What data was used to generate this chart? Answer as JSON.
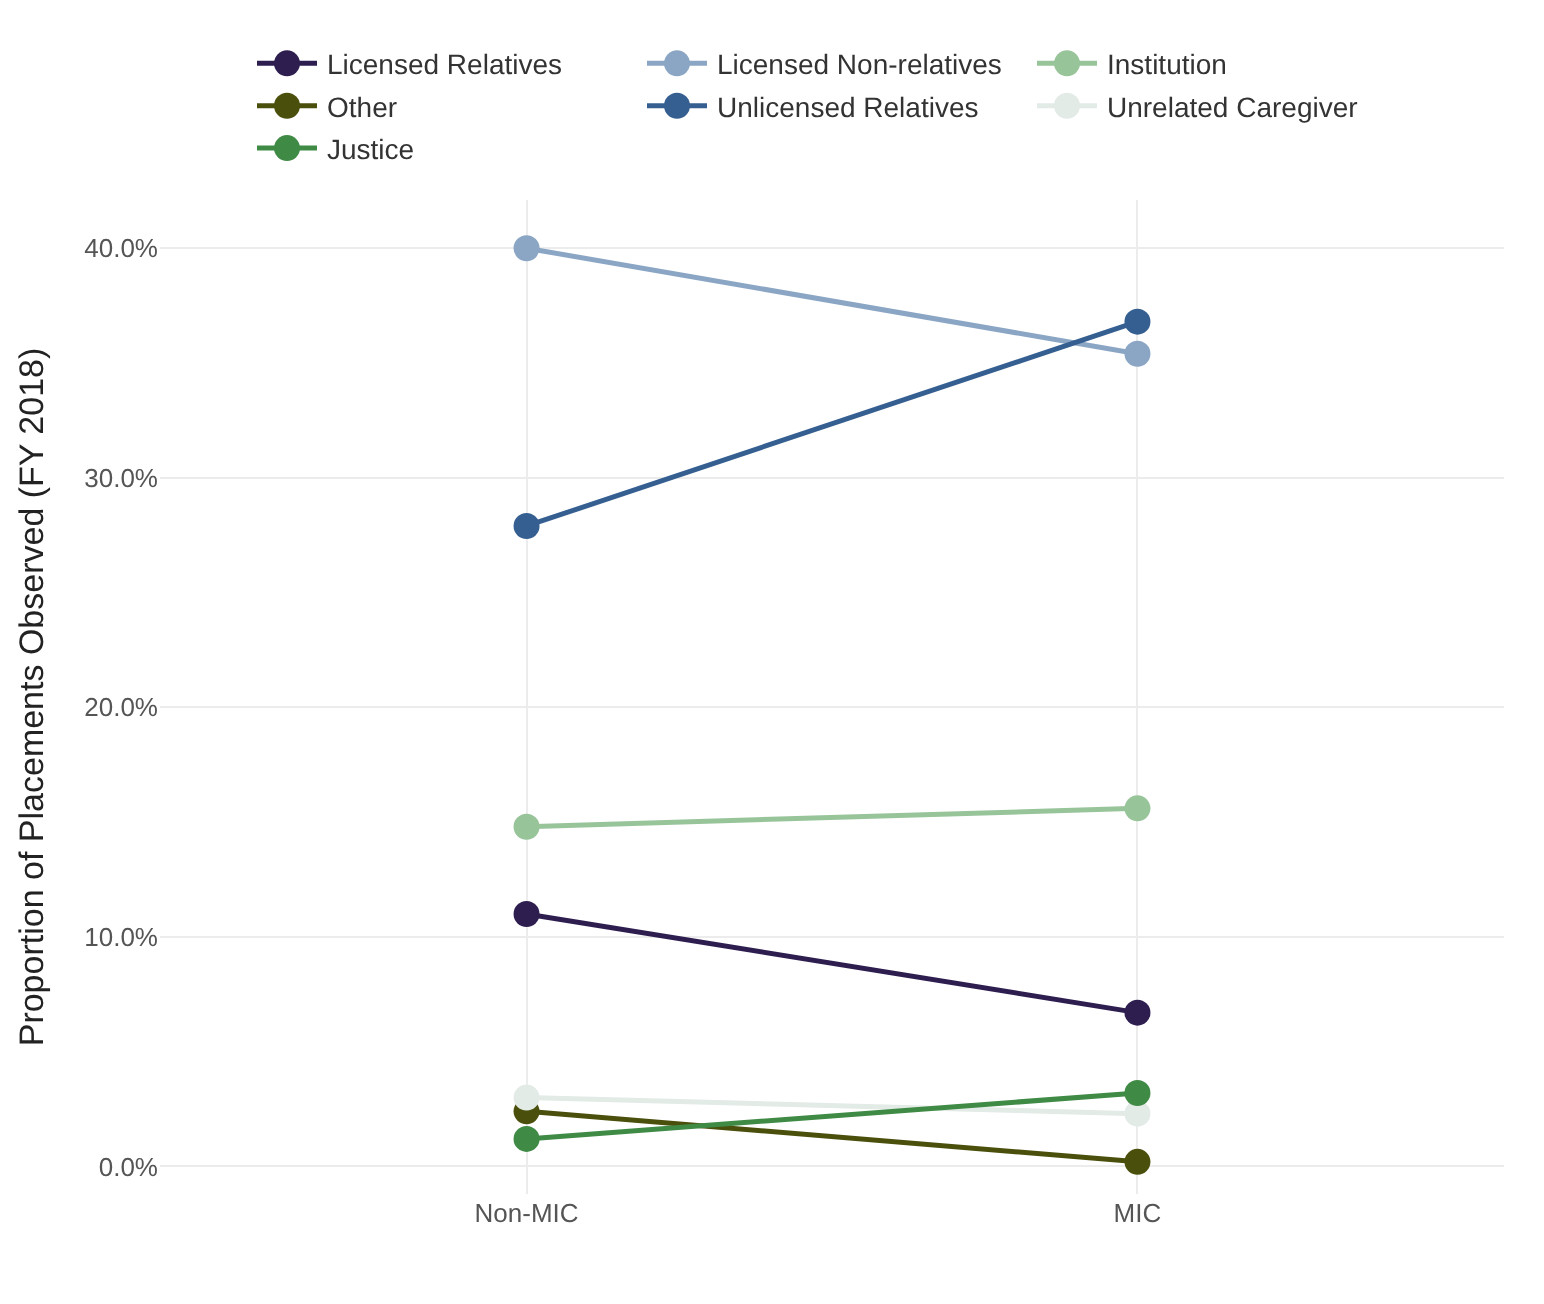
{
  "chart_data": {
    "type": "line",
    "ylabel": "Proportion of Placements Observed (FY 2018)",
    "categories": [
      "Non-MIC",
      "MIC"
    ],
    "series": [
      {
        "name": "Licensed Relatives",
        "color": "#2d1e4f",
        "values": [
          11.0,
          6.7
        ]
      },
      {
        "name": "Licensed Non-relatives",
        "color": "#8aa6c4",
        "values": [
          40.0,
          35.4
        ]
      },
      {
        "name": "Institution",
        "color": "#98c49a",
        "values": [
          14.8,
          15.6
        ]
      },
      {
        "name": "Other",
        "color": "#4a4f0c",
        "values": [
          2.4,
          0.2
        ]
      },
      {
        "name": "Unlicensed Relatives",
        "color": "#365f91",
        "values": [
          27.9,
          36.8
        ]
      },
      {
        "name": "Unrelated Caregiver",
        "color": "#e3ebe6",
        "values": [
          3.0,
          2.3
        ]
      },
      {
        "name": "Justice",
        "color": "#3f8a45",
        "values": [
          1.2,
          3.2
        ]
      }
    ],
    "ylim": [
      -1.2,
      42.1
    ],
    "yticks": [
      {
        "value": 0,
        "label": "0.0%"
      },
      {
        "value": 10,
        "label": "10.0%"
      },
      {
        "value": 20,
        "label": "20.0%"
      },
      {
        "value": 30,
        "label": "30.0%"
      },
      {
        "value": 40,
        "label": "40.0%"
      }
    ],
    "grid": true,
    "legend": "top",
    "marker": "circle",
    "line_style": "solid"
  }
}
